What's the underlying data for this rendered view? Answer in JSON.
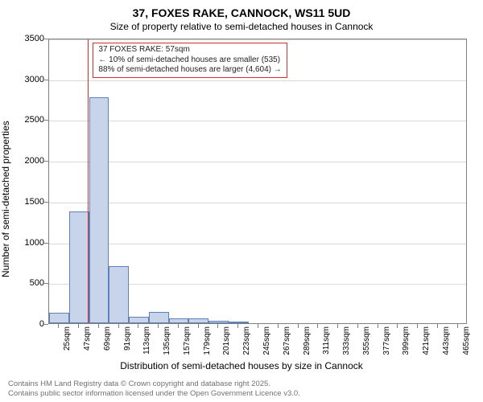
{
  "chart": {
    "type": "histogram",
    "title": "37, FOXES RAKE, CANNOCK, WS11 5UD",
    "subtitle": "Size of property relative to semi-detached houses in Cannock",
    "x_axis_label": "Distribution of semi-detached houses by size in Cannock",
    "y_axis_label": "Number of semi-detached properties",
    "background_color": "#ffffff",
    "border_color": "#7f7f7f",
    "grid_color": "#d9d9d9",
    "bar_fill": "#c8d4ea",
    "bar_stroke": "#6080b8",
    "marker_color": "#d03030",
    "text_color": "#222222",
    "footer_color": "#717171",
    "title_fontsize": 14,
    "subtitle_fontsize": 12,
    "axis_label_fontsize": 12,
    "tick_fontsize": 11,
    "xtick_fontsize": 10,
    "annotation_fontsize": 10,
    "footer_fontsize": 9.5,
    "x_range": [
      14,
      476
    ],
    "y_range": [
      0,
      3500
    ],
    "y_ticks": [
      0,
      500,
      1000,
      1500,
      2000,
      2500,
      3000,
      3500
    ],
    "x_tick_labels": [
      "25sqm",
      "47sqm",
      "69sqm",
      "91sqm",
      "113sqm",
      "135sqm",
      "157sqm",
      "179sqm",
      "201sqm",
      "223sqm",
      "245sqm",
      "267sqm",
      "289sqm",
      "311sqm",
      "333sqm",
      "355sqm",
      "377sqm",
      "399sqm",
      "421sqm",
      "443sqm",
      "465sqm"
    ],
    "x_tick_values": [
      25,
      47,
      69,
      91,
      113,
      135,
      157,
      179,
      201,
      223,
      245,
      267,
      289,
      311,
      333,
      355,
      377,
      399,
      421,
      443,
      465
    ],
    "bars": [
      {
        "x0": 14,
        "x1": 36,
        "y": 130
      },
      {
        "x0": 36,
        "x1": 58,
        "y": 1370
      },
      {
        "x0": 58,
        "x1": 80,
        "y": 2770
      },
      {
        "x0": 80,
        "x1": 102,
        "y": 700
      },
      {
        "x0": 102,
        "x1": 124,
        "y": 80
      },
      {
        "x0": 124,
        "x1": 146,
        "y": 140
      },
      {
        "x0": 146,
        "x1": 168,
        "y": 60
      },
      {
        "x0": 168,
        "x1": 190,
        "y": 60
      },
      {
        "x0": 190,
        "x1": 212,
        "y": 30
      },
      {
        "x0": 212,
        "x1": 234,
        "y": 10
      }
    ],
    "marker_x": 57,
    "annotation": {
      "line1": "37 FOXES RAKE: 57sqm",
      "line2": "← 10% of semi-detached houses are smaller (535)",
      "line3": "88% of semi-detached houses are larger (4,604) →"
    },
    "footer_line1": "Contains HM Land Registry data © Crown copyright and database right 2025.",
    "footer_line2": "Contains public sector information licensed under the Open Government Licence v3.0."
  }
}
